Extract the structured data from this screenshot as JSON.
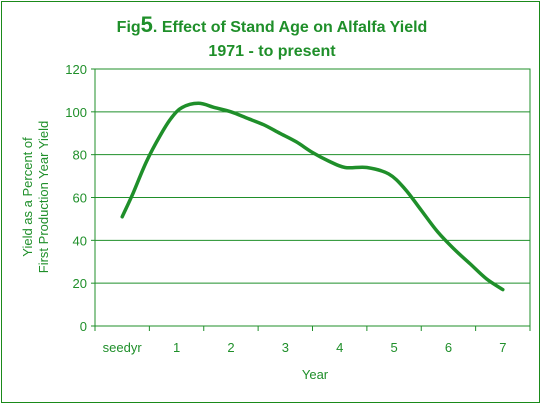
{
  "chart_data": {
    "type": "line",
    "title_prefix": "Fig",
    "title_number": "5",
    "title_main": ". Effect of Stand Age on Alfalfa Yield",
    "subtitle": "1971 - to present",
    "xlabel": "Year",
    "ylabel_line1": "Yield as a Percent of",
    "ylabel_line2": "First Production Year Yield",
    "categories": [
      "seedyr",
      "1",
      "2",
      "3",
      "4",
      "5",
      "6",
      "7"
    ],
    "x_range": [
      -0.5,
      7.5
    ],
    "ylim": [
      0,
      120
    ],
    "y_ticks": [
      "0",
      "20",
      "40",
      "60",
      "80",
      "100",
      "120"
    ],
    "grid": true,
    "series": [
      {
        "x": [
          0,
          0.2,
          0.45,
          0.7,
          0.9,
          1.1,
          1.4,
          1.7,
          2.0,
          2.3,
          2.6,
          2.9,
          3.2,
          3.5,
          3.8,
          4.1,
          4.5,
          4.9,
          5.2,
          5.5,
          5.8,
          6.1,
          6.4,
          6.7,
          7.0
        ],
        "values": [
          51,
          62,
          77,
          89,
          97,
          102,
          104,
          102,
          100,
          97,
          94,
          90,
          86,
          81,
          77,
          74,
          74,
          71,
          64,
          54,
          44,
          36,
          29,
          22,
          17
        ],
        "color": "#1f8f2a"
      }
    ]
  }
}
